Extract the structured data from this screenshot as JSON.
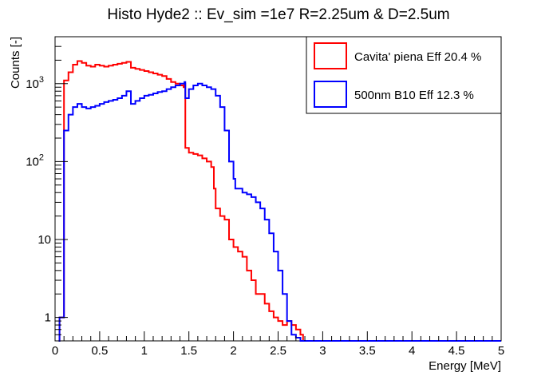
{
  "chart_data": {
    "type": "line",
    "title": "Histo Hyde2 :: Ev_sim =1e7  R=2.25um & D=2.5um",
    "xlabel": "Energy [MeV]",
    "ylabel": "Counts [-]",
    "xlim": [
      0,
      5
    ],
    "ylim": [
      0.5,
      4000
    ],
    "yscale": "log",
    "grid": false,
    "legend_position": "top-right",
    "x_ticks": [
      {
        "value": 0,
        "label": "0"
      },
      {
        "value": 0.5,
        "label": "0.5"
      },
      {
        "value": 1,
        "label": "1"
      },
      {
        "value": 1.5,
        "label": "1.5"
      },
      {
        "value": 2,
        "label": "2"
      },
      {
        "value": 2.5,
        "label": "2.5"
      },
      {
        "value": 3,
        "label": "3"
      },
      {
        "value": 3.5,
        "label": "3.5"
      },
      {
        "value": 4,
        "label": "4"
      },
      {
        "value": 4.5,
        "label": "4.5"
      },
      {
        "value": 5,
        "label": "5"
      }
    ],
    "y_ticks": [
      {
        "value": 1,
        "label": "1"
      },
      {
        "value": 10,
        "label": "10"
      },
      {
        "value": 100,
        "label": "10",
        "sup": "2"
      },
      {
        "value": 1000,
        "label": "10",
        "sup": "3"
      }
    ],
    "series": [
      {
        "name": "Cavita' piena Eff 20.4 %",
        "color": "#ff0000",
        "x": [
          0.04,
          0.05,
          0.06,
          0.1,
          0.15,
          0.2,
          0.25,
          0.3,
          0.35,
          0.4,
          0.45,
          0.5,
          0.55,
          0.6,
          0.65,
          0.7,
          0.75,
          0.8,
          0.85,
          0.9,
          0.95,
          1.0,
          1.05,
          1.1,
          1.15,
          1.2,
          1.25,
          1.3,
          1.35,
          1.4,
          1.44,
          1.45,
          1.46,
          1.5,
          1.55,
          1.6,
          1.65,
          1.7,
          1.75,
          1.78,
          1.8,
          1.85,
          1.9,
          1.95,
          2.0,
          2.05,
          2.1,
          2.15,
          2.2,
          2.25,
          2.3,
          2.35,
          2.4,
          2.45,
          2.5,
          2.55,
          2.6,
          2.65,
          2.7,
          2.75,
          2.78
        ],
        "y": [
          0.5,
          1.0,
          1.0,
          1100,
          1400,
          1750,
          1950,
          1850,
          1700,
          1650,
          1750,
          1700,
          1650,
          1700,
          1750,
          1800,
          1850,
          1900,
          1600,
          1550,
          1500,
          1450,
          1400,
          1350,
          1300,
          1250,
          1150,
          1050,
          1000,
          950,
          900,
          1000,
          150,
          130,
          125,
          120,
          110,
          100,
          85,
          45,
          25,
          20,
          18,
          10,
          8,
          7,
          6,
          4,
          3,
          2,
          2,
          1.5,
          1.2,
          1.0,
          0.9,
          0.8,
          0.9,
          0.8,
          0.7,
          0.6,
          0.5
        ]
      },
      {
        "name": "500nm B10 Eff 12.3 %",
        "color": "#0000ff",
        "x": [
          0.04,
          0.05,
          0.06,
          0.1,
          0.15,
          0.2,
          0.25,
          0.3,
          0.35,
          0.4,
          0.45,
          0.5,
          0.55,
          0.6,
          0.65,
          0.7,
          0.75,
          0.8,
          0.85,
          0.9,
          0.95,
          1.0,
          1.05,
          1.1,
          1.15,
          1.2,
          1.25,
          1.3,
          1.35,
          1.4,
          1.45,
          1.46,
          1.5,
          1.55,
          1.6,
          1.65,
          1.7,
          1.75,
          1.8,
          1.85,
          1.9,
          1.95,
          2.0,
          2.02,
          2.05,
          2.1,
          2.15,
          2.2,
          2.25,
          2.3,
          2.35,
          2.4,
          2.45,
          2.5,
          2.55,
          2.6,
          2.65,
          2.7,
          2.75,
          3.0,
          3.5,
          4.0,
          5.0
        ],
        "y": [
          0.5,
          1.0,
          1.0,
          250,
          400,
          500,
          550,
          500,
          480,
          500,
          520,
          550,
          580,
          600,
          620,
          650,
          700,
          800,
          550,
          600,
          650,
          700,
          720,
          750,
          780,
          800,
          850,
          900,
          950,
          1000,
          1050,
          650,
          850,
          950,
          1000,
          950,
          900,
          850,
          700,
          500,
          250,
          100,
          60,
          45,
          45,
          40,
          38,
          35,
          30,
          25,
          18,
          12,
          7,
          4,
          2,
          0.9,
          0.6,
          0.55,
          0.5,
          0.5,
          0.5,
          0.5,
          0.5
        ]
      }
    ]
  }
}
